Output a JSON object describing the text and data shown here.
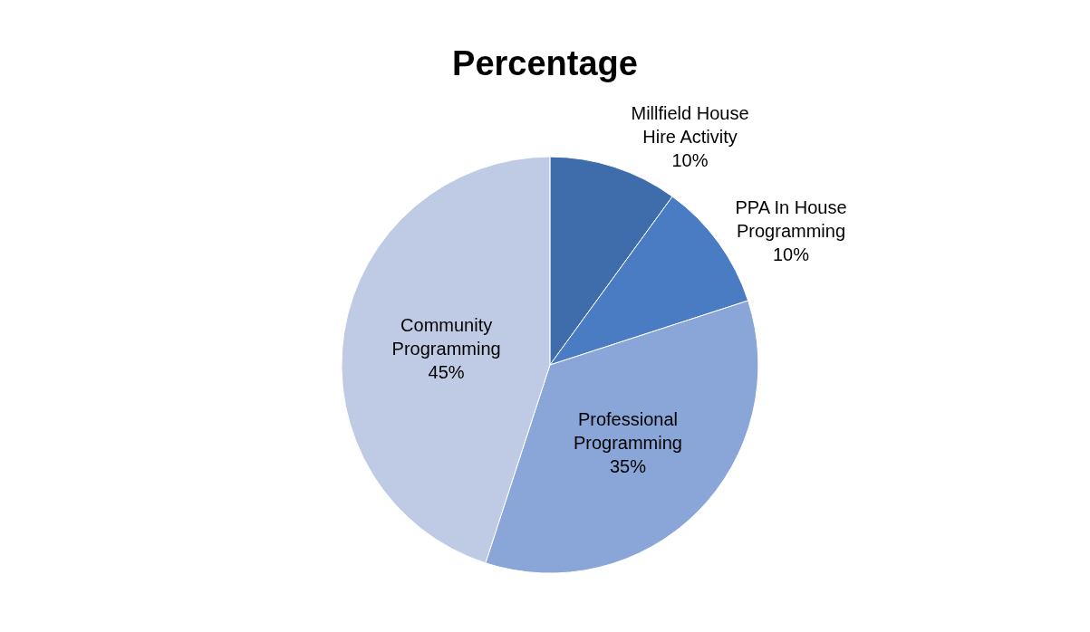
{
  "chart_data": {
    "type": "pie",
    "title": "Percentage",
    "categories": [
      "Millfield House Hire Activity",
      "PPA In House Programming",
      "Professional Programming",
      "Community Programming"
    ],
    "values": [
      10,
      10,
      35,
      45
    ],
    "value_labels": [
      "10%",
      "10%",
      "35%",
      "45%"
    ],
    "colors": [
      "#3f6cab",
      "#4a7cc4",
      "#8aa5d8",
      "#bfcbe5"
    ],
    "legend": false
  }
}
